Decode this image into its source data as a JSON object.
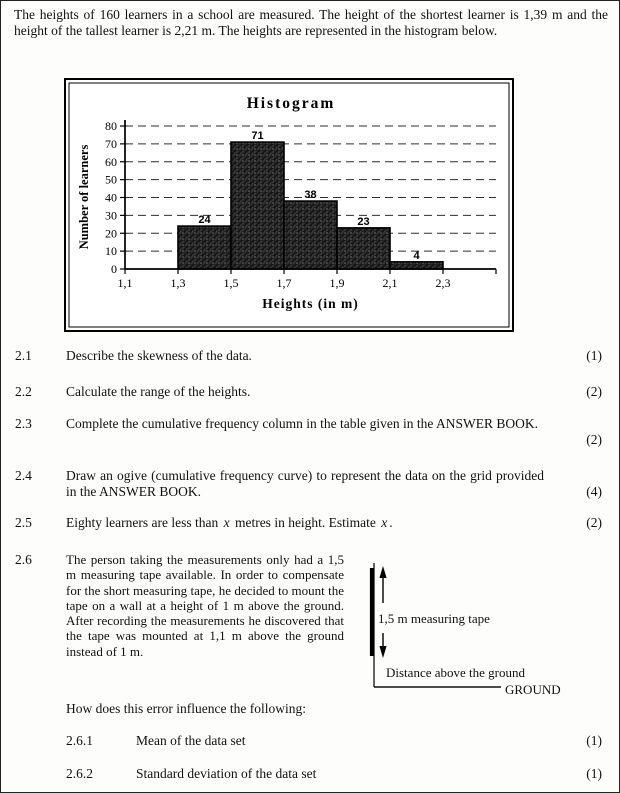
{
  "intro": "The heights of 160 learners in a school are measured. The height of the shortest learner is 1,39 m and the height of the tallest learner is 2,21 m. The heights are represented in the histogram below.",
  "chart_data": {
    "type": "bar",
    "title": "Histogram",
    "xlabel": "Heights (in m)",
    "ylabel": "Number of learners",
    "x_tick_labels": [
      "1,1",
      "1,3",
      "1,5",
      "1,7",
      "1,9",
      "2,1",
      "2,3"
    ],
    "y_ticks": [
      0,
      10,
      20,
      30,
      40,
      50,
      60,
      70,
      80
    ],
    "ylim": [
      0,
      80
    ],
    "grid": "horizontal-dashed",
    "bins": [
      [
        1.3,
        1.5
      ],
      [
        1.5,
        1.7
      ],
      [
        1.7,
        1.9
      ],
      [
        1.9,
        2.1
      ],
      [
        2.1,
        2.3
      ]
    ],
    "values": [
      24,
      71,
      38,
      23,
      4
    ],
    "first_bar_tick_index": 1,
    "legend": "none",
    "bar_fill": "dark-hatched",
    "bar_border": "#000000"
  },
  "questions": {
    "q21": {
      "num": "2.1",
      "text": "Describe the skewness of the data.",
      "marks": "(1)"
    },
    "q22": {
      "num": "2.2",
      "text": "Calculate the range of the heights.",
      "marks": "(2)"
    },
    "q23": {
      "num": "2.3",
      "text": "Complete the cumulative frequency column in the table given in the ANSWER BOOK.",
      "marks": "(2)"
    },
    "q24": {
      "num": "2.4",
      "text": "Draw an ogive (cumulative frequency curve) to represent the data on the grid provided in the ANSWER BOOK.",
      "marks": "(4)"
    },
    "q25": {
      "num": "2.5",
      "pre": "Eighty learners are less than ",
      "x1": "x",
      "mid": " metres in height. Estimate ",
      "x2": "x",
      "end": ".",
      "marks": "(2)"
    },
    "q26": {
      "num": "2.6",
      "text": "The person taking the measurements only had a 1,5 m measuring tape available. In order to compensate for the short measuring tape, he decided to mount the tape on a wall at a height of 1 m above the ground. After recording the measurements he discovered that the tape was mounted at 1,1 m above the ground instead of 1 m.",
      "followup": "How does this error influence the following:"
    },
    "q261": {
      "num": "2.6.1",
      "text": "Mean of the data set",
      "marks": "(1)"
    },
    "q262": {
      "num": "2.6.2",
      "text": "Standard deviation of the data set",
      "marks": "(1)"
    }
  },
  "diagram": {
    "tape_label": "1,5 m measuring tape",
    "distance_label": "Distance above the ground",
    "ground_label": "GROUND"
  }
}
